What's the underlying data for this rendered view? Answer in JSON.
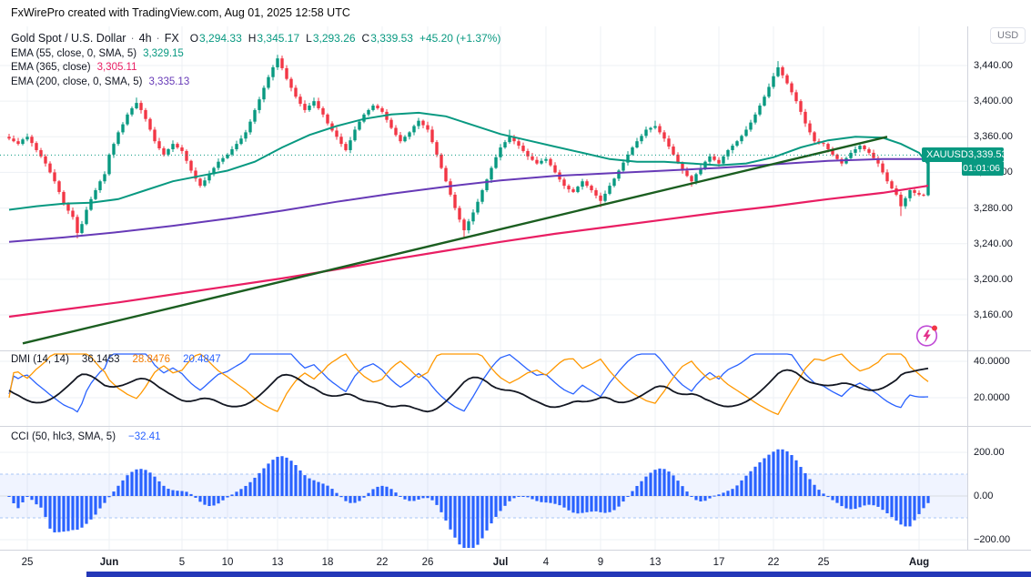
{
  "attribution": "FxWirePro created with TradingView.com, Aug 01, 2025 12:58 UTC",
  "colors": {
    "up": "#089981",
    "down": "#F23645",
    "ema55": "#089981",
    "ema200": "#673AB7",
    "ema365": "#E91E63",
    "trend": "#1B5E20",
    "price_line": "#089981",
    "dmi_plus": "#2962FF",
    "dmi_minus": "#FF9800",
    "dmi_adx": "#131722",
    "cci_bar": "#2962FF",
    "grid": "#EDF0F4",
    "frame": "#D1D4DC",
    "badge": "#089981",
    "brand_bar": "#2438B8"
  },
  "main_legend": {
    "symbol": "Gold Spot / U.S. Dollar",
    "sep": "·",
    "interval": "4h",
    "exchange": "FX",
    "ohlc": {
      "o_label": "O",
      "o": "3,294.33",
      "h_label": "H",
      "h": "3,345.17",
      "l_label": "L",
      "l": "3,293.26",
      "c_label": "C",
      "c": "3,339.53",
      "change": "+45.20 (+1.37%)"
    },
    "emas": [
      {
        "label": "EMA (55, close, 0, SMA, 5)",
        "value": "3,329.15",
        "color": "#089981"
      },
      {
        "label": "EMA (365, close)",
        "value": "3,305.11",
        "color": "#E91E63"
      },
      {
        "label": "EMA (200, close, 0, SMA, 5)",
        "value": "3,335.13",
        "color": "#673AB7"
      }
    ]
  },
  "dmi_legend": {
    "title": "DMI (14, 14)",
    "values": [
      {
        "text": "36.1453",
        "color": "#131722"
      },
      {
        "text": "28.8476",
        "color": "#F57C00"
      },
      {
        "text": "20.4847",
        "color": "#2962FF"
      }
    ]
  },
  "cci_legend": {
    "title": "CCI (50, hlc3, SMA, 5)",
    "value": "−32.41",
    "color": "#2962FF"
  },
  "price_scale": {
    "currency": "USD",
    "label": {
      "symbol": "XAUUSD",
      "price": "3,339.53",
      "countdown": "01:01:06"
    },
    "ticks": [
      {
        "v": 3440,
        "t": "3,440.00"
      },
      {
        "v": 3400,
        "t": "3,400.00"
      },
      {
        "v": 3360,
        "t": "3,360.00"
      },
      {
        "v": 3320,
        "t": "3,320.00"
      },
      {
        "v": 3280,
        "t": "3,280.00"
      },
      {
        "v": 3240,
        "t": "3,240.00"
      },
      {
        "v": 3200,
        "t": "3,200.00"
      },
      {
        "v": 3160,
        "t": "3,160.00"
      }
    ]
  },
  "dmi_scale": {
    "ticks": [
      {
        "v": 40,
        "t": "40.0000"
      },
      {
        "v": 20,
        "t": "20.0000"
      }
    ]
  },
  "cci_scale": {
    "ticks": [
      {
        "v": 200,
        "t": "200.00"
      },
      {
        "v": 0,
        "t": "0.00"
      },
      {
        "v": -200,
        "t": "−200.00"
      }
    ]
  },
  "time_axis": {
    "labels": [
      {
        "t": "25",
        "i": 4
      },
      {
        "t": "Jun",
        "i": 22,
        "b": 1
      },
      {
        "t": "5",
        "i": 38
      },
      {
        "t": "10",
        "i": 48
      },
      {
        "t": "13",
        "i": 59
      },
      {
        "t": "18",
        "i": 70
      },
      {
        "t": "22",
        "i": 82
      },
      {
        "t": "26",
        "i": 92
      },
      {
        "t": "Jul",
        "i": 108,
        "b": 1
      },
      {
        "t": "4",
        "i": 118
      },
      {
        "t": "9",
        "i": 130
      },
      {
        "t": "13",
        "i": 142
      },
      {
        "t": "17",
        "i": 156
      },
      {
        "t": "22",
        "i": 168
      },
      {
        "t": "25",
        "i": 179
      },
      {
        "t": "Aug",
        "i": 200,
        "b": 1
      }
    ]
  },
  "chart_data": {
    "type": "candlestick",
    "symbol": "XAUUSD",
    "interval": "4h",
    "title": "Gold Spot / U.S. Dollar · 4h · FX",
    "ylim": [
      3140,
      3465
    ],
    "price_ticks": [
      3440,
      3400,
      3360,
      3320,
      3280,
      3240,
      3200,
      3160
    ],
    "last_bar": {
      "open": 3294.33,
      "high": 3345.17,
      "low": 3293.26,
      "close": 3339.53
    },
    "first_open": 3360,
    "closes": [
      3358,
      3355,
      3352,
      3357,
      3360,
      3353,
      3345,
      3338,
      3330,
      3320,
      3310,
      3298,
      3285,
      3277,
      3270,
      3252,
      3262,
      3278,
      3290,
      3300,
      3310,
      3318,
      3340,
      3352,
      3365,
      3374,
      3385,
      3392,
      3398,
      3390,
      3380,
      3368,
      3355,
      3347,
      3340,
      3346,
      3352,
      3348,
      3344,
      3333,
      3322,
      3313,
      3305,
      3311,
      3318,
      3325,
      3332,
      3336,
      3340,
      3346,
      3352,
      3358,
      3365,
      3377,
      3390,
      3402,
      3415,
      3427,
      3438,
      3448,
      3437,
      3425,
      3415,
      3405,
      3397,
      3390,
      3395,
      3400,
      3392,
      3385,
      3375,
      3367,
      3360,
      3352,
      3345,
      3356,
      3368,
      3377,
      3385,
      3390,
      3395,
      3392,
      3388,
      3379,
      3370,
      3362,
      3355,
      3360,
      3365,
      3372,
      3378,
      3373,
      3368,
      3354,
      3340,
      3325,
      3310,
      3295,
      3280,
      3267,
      3255,
      3265,
      3275,
      3287,
      3300,
      3312,
      3325,
      3337,
      3348,
      3354,
      3360,
      3355,
      3350,
      3344,
      3338,
      3334,
      3330,
      3333,
      3335,
      3328,
      3320,
      3312,
      3305,
      3301,
      3298,
      3304,
      3310,
      3305,
      3300,
      3294,
      3288,
      3296,
      3305,
      3313,
      3322,
      3331,
      3340,
      3348,
      3355,
      3361,
      3368,
      3370,
      3372,
      3365,
      3358,
      3349,
      3340,
      3331,
      3322,
      3316,
      3310,
      3318,
      3325,
      3332,
      3338,
      3334,
      3330,
      3338,
      3345,
      3350,
      3355,
      3361,
      3368,
      3376,
      3385,
      3395,
      3405,
      3416,
      3428,
      3438,
      3429,
      3420,
      3410,
      3400,
      3388,
      3375,
      3365,
      3355,
      3353,
      3352,
      3346,
      3340,
      3335,
      3330,
      3336,
      3342,
      3346,
      3350,
      3346,
      3342,
      3336,
      3330,
      3320,
      3310,
      3302,
      3295,
      3282,
      3291,
      3300,
      3297,
      3295,
      3294.33,
      3339.53
    ],
    "wick_overrides": {
      "15": {
        "low": 3246
      },
      "28": {
        "high": 3404
      },
      "59": {
        "high": 3452
      },
      "100": {
        "low": 3246
      },
      "110": {
        "high": 3368
      },
      "130": {
        "low": 3281
      },
      "142": {
        "high": 3378
      },
      "150": {
        "low": 3304
      },
      "169": {
        "high": 3445
      },
      "196": {
        "low": 3271
      }
    },
    "overlays": {
      "price_line": 3339.53,
      "ema55": [
        [
          0,
          3278
        ],
        [
          6,
          3282
        ],
        [
          12,
          3285
        ],
        [
          18,
          3286
        ],
        [
          24,
          3290
        ],
        [
          30,
          3300
        ],
        [
          36,
          3310
        ],
        [
          42,
          3316
        ],
        [
          48,
          3322
        ],
        [
          54,
          3332
        ],
        [
          60,
          3348
        ],
        [
          66,
          3362
        ],
        [
          72,
          3372
        ],
        [
          78,
          3380
        ],
        [
          84,
          3385
        ],
        [
          90,
          3387
        ],
        [
          96,
          3383
        ],
        [
          102,
          3373
        ],
        [
          108,
          3363
        ],
        [
          114,
          3356
        ],
        [
          120,
          3349
        ],
        [
          126,
          3342
        ],
        [
          132,
          3335
        ],
        [
          138,
          3332
        ],
        [
          144,
          3332
        ],
        [
          150,
          3330
        ],
        [
          156,
          3328
        ],
        [
          162,
          3330
        ],
        [
          168,
          3337
        ],
        [
          174,
          3348
        ],
        [
          180,
          3356
        ],
        [
          186,
          3360
        ],
        [
          192,
          3359
        ],
        [
          196,
          3352
        ],
        [
          200,
          3342
        ],
        [
          202,
          3329
        ]
      ],
      "ema200": [
        [
          0,
          3242
        ],
        [
          12,
          3247
        ],
        [
          24,
          3253
        ],
        [
          36,
          3260
        ],
        [
          48,
          3268
        ],
        [
          60,
          3277
        ],
        [
          72,
          3287
        ],
        [
          84,
          3296
        ],
        [
          96,
          3304
        ],
        [
          108,
          3311
        ],
        [
          120,
          3316
        ],
        [
          132,
          3319
        ],
        [
          144,
          3322
        ],
        [
          156,
          3325
        ],
        [
          168,
          3329
        ],
        [
          180,
          3333
        ],
        [
          192,
          3335
        ],
        [
          202,
          3335
        ]
      ],
      "ema365": [
        [
          0,
          3158
        ],
        [
          12,
          3166
        ],
        [
          24,
          3174
        ],
        [
          36,
          3183
        ],
        [
          48,
          3192
        ],
        [
          60,
          3201
        ],
        [
          72,
          3211
        ],
        [
          84,
          3222
        ],
        [
          96,
          3232
        ],
        [
          108,
          3242
        ],
        [
          120,
          3251
        ],
        [
          132,
          3259
        ],
        [
          144,
          3267
        ],
        [
          156,
          3275
        ],
        [
          168,
          3282
        ],
        [
          180,
          3290
        ],
        [
          192,
          3297
        ],
        [
          202,
          3305
        ]
      ],
      "trendline": {
        "i1": 3,
        "p1": 3128,
        "i2": 193,
        "p2": 3360
      }
    },
    "indicators": {
      "dmi": {
        "params": "(14, 14)",
        "adx": 36.1453,
        "minus_di": 28.8476,
        "plus_di": 20.4847,
        "ticks": [
          40,
          20
        ]
      },
      "cci": {
        "params": "(50, hlc3, SMA, 5)",
        "value": -32.41,
        "ticks": [
          200,
          0,
          -200
        ],
        "band": [
          100,
          -100
        ]
      }
    }
  }
}
